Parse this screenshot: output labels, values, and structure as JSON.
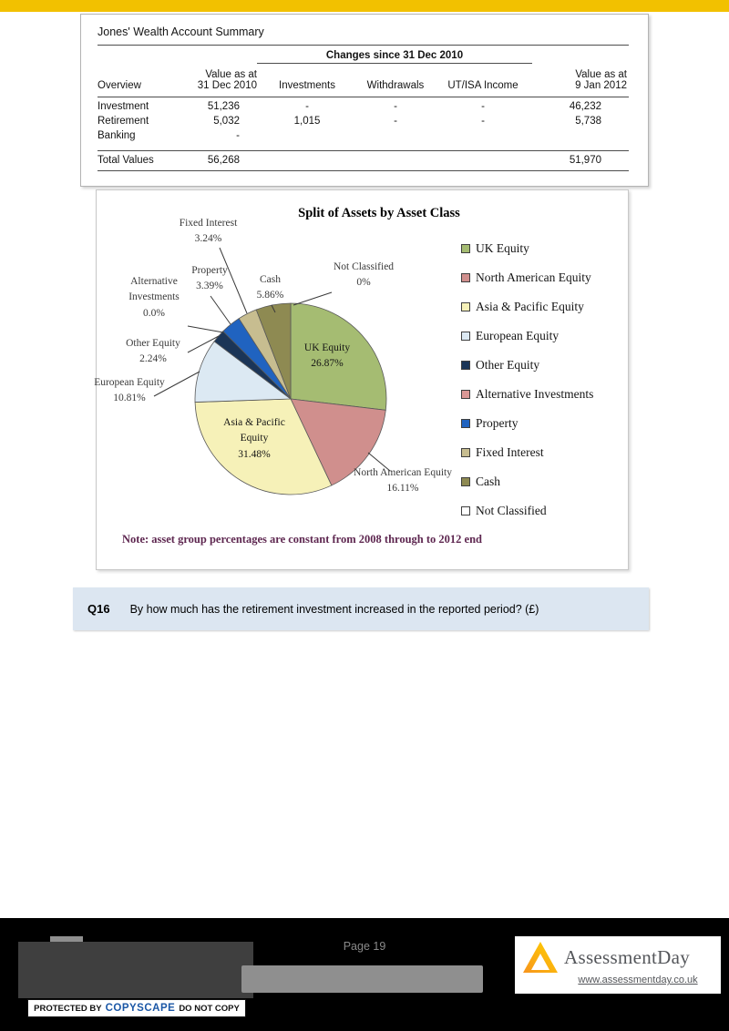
{
  "colors": {
    "accent_bar": "#F2C100",
    "question_bg": "#dce6f1",
    "note_text": "#5e2750"
  },
  "summary_table": {
    "title": "Jones' Wealth Account Summary",
    "changes_header": "Changes since 31 Dec 2010",
    "col_headers": {
      "overview": "Overview",
      "value_2010_line1": "Value as at",
      "value_2010_line2": "31 Dec 2010",
      "investments": "Investments",
      "withdrawals": "Withdrawals",
      "utisa": "UT/ISA Income",
      "value_2012_line1": "Value as at",
      "value_2012_line2": "9 Jan 2012"
    },
    "rows": [
      {
        "label": "Investment",
        "v2010": "51,236",
        "investments": "-",
        "withdrawals": "-",
        "utisa": "-",
        "v2012": "46,232"
      },
      {
        "label": "Retirement",
        "v2010": "5,032",
        "investments": "1,015",
        "withdrawals": "-",
        "utisa": "-",
        "v2012": "5,738"
      },
      {
        "label": "Banking",
        "v2010": "-",
        "investments": "",
        "withdrawals": "",
        "utisa": "",
        "v2012": ""
      }
    ],
    "total": {
      "label": "Total Values",
      "v2010": "56,268",
      "v2012": "51,970"
    }
  },
  "chart_data": {
    "type": "pie",
    "title": "Split of Assets by Asset Class",
    "note": "Note: asset group percentages are constant from 2008 through to 2012 end",
    "legend_position": "right",
    "slices": [
      {
        "label": "UK Equity",
        "value": 26.87,
        "pct_label": "26.87%",
        "color": "#A5BC72"
      },
      {
        "label": "North American Equity",
        "value": 16.11,
        "pct_label": "16.11%",
        "color": "#D08F8D"
      },
      {
        "label": "Asia & Pacific Equity",
        "value": 31.48,
        "pct_label": "31.48%",
        "color": "#F6F1B8"
      },
      {
        "label": "European Equity",
        "value": 10.81,
        "pct_label": "10.81%",
        "color": "#DCE9F3"
      },
      {
        "label": "Other Equity",
        "value": 2.24,
        "pct_label": "2.24%",
        "color": "#1B3557"
      },
      {
        "label": "Alternative Investments",
        "value": 0.0,
        "pct_label": "0.0%",
        "color": "#DB9896"
      },
      {
        "label": "Property",
        "value": 3.39,
        "pct_label": "3.39%",
        "color": "#2063C0"
      },
      {
        "label": "Fixed Interest",
        "value": 3.24,
        "pct_label": "3.24%",
        "color": "#C7BD90"
      },
      {
        "label": "Cash",
        "value": 5.86,
        "pct_label": "5.86%",
        "color": "#8E8A52"
      },
      {
        "label": "Not Classified",
        "value": 0,
        "pct_label": "0%",
        "color": "#FFFFFF"
      }
    ]
  },
  "question": {
    "id": "Q16",
    "text": "By how much has the retirement investment increased in the reported period? (£)"
  },
  "footer": {
    "page_label": "Page 19",
    "copyscape": {
      "protected_by": "PROTECTED BY",
      "brand": "COPYSCAPE",
      "do_not_copy": "DO NOT COPY"
    },
    "brand": {
      "name": "AssessmentDay",
      "url": "www.assessmentday.co.uk"
    }
  }
}
